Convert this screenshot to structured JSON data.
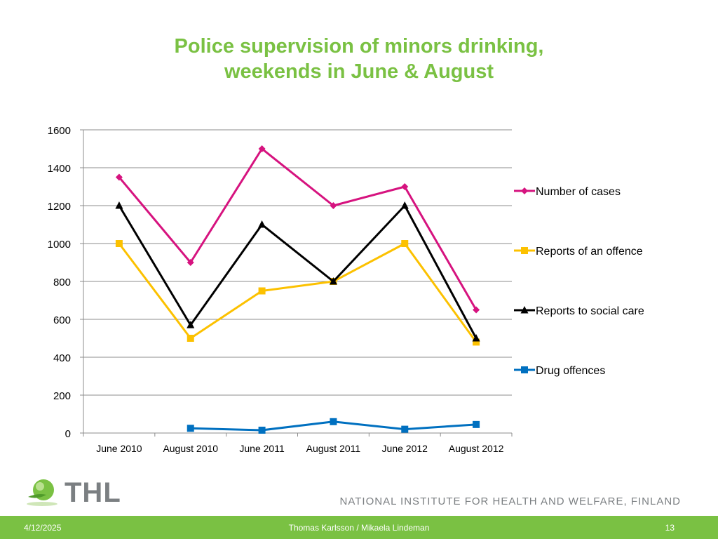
{
  "slide": {
    "title_line1": "Police supervision of minors drinking,",
    "title_line2": "weekends in June & August"
  },
  "chart_data": {
    "type": "line",
    "categories": [
      "June 2010",
      "August 2010",
      "June 2011",
      "August 2011",
      "June 2012",
      "August 2012"
    ],
    "ylim": [
      0,
      1600
    ],
    "yticks": [
      0,
      200,
      400,
      600,
      800,
      1000,
      1200,
      1400,
      1600
    ],
    "grid": true,
    "legend_position": "right",
    "series": [
      {
        "name": "Number of cases",
        "color": "#d6137f",
        "marker": "diamond",
        "values": [
          1350,
          900,
          1500,
          1200,
          1300,
          650
        ]
      },
      {
        "name": "Reports of an offence",
        "color": "#fcc100",
        "marker": "square",
        "values": [
          1000,
          500,
          750,
          800,
          1000,
          480
        ]
      },
      {
        "name": "Reports to social care",
        "color": "#000000",
        "marker": "triangle",
        "values": [
          1200,
          570,
          1100,
          800,
          1200,
          500
        ]
      },
      {
        "name": "Drug offences",
        "color": "#0070c0",
        "marker": "square",
        "values": [
          null,
          25,
          15,
          60,
          20,
          45
        ]
      }
    ]
  },
  "footer": {
    "date": "4/12/2025",
    "author": "Thomas Karlsson / Mikaela Lindeman",
    "page": "13",
    "logo_text": "THL",
    "institute": "NATIONAL INSTITUTE FOR HEALTH AND WELFARE, FINLAND"
  },
  "colors": {
    "accent": "#7ac143",
    "gray": "#7b7f82"
  }
}
